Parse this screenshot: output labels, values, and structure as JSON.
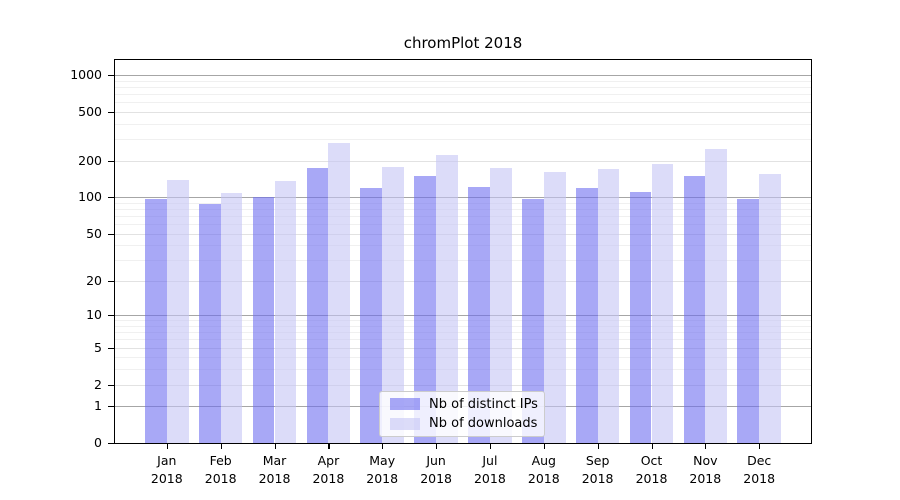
{
  "title": "chromPlot 2018",
  "legend": {
    "items": [
      {
        "label": "Nb of distinct IPs",
        "color": "rgba(105,105,240,0.58)"
      },
      {
        "label": "Nb of downloads",
        "color": "rgba(197,197,245,0.6)"
      }
    ]
  },
  "chart_data": {
    "type": "bar",
    "title": "chromPlot 2018",
    "categories": [
      "Jan 2018",
      "Feb 2018",
      "Mar 2018",
      "Apr 2018",
      "May 2018",
      "Jun 2018",
      "Jul 2018",
      "Aug 2018",
      "Sep 2018",
      "Oct 2018",
      "Nov 2018",
      "Dec 2018"
    ],
    "months": [
      "Jan",
      "Feb",
      "Mar",
      "Apr",
      "May",
      "Jun",
      "Jul",
      "Aug",
      "Sep",
      "Oct",
      "Nov",
      "Dec"
    ],
    "year": "2018",
    "series": [
      {
        "name": "Nb of distinct IPs",
        "color": "rgba(105,105,240,0.58)",
        "values": [
          97,
          88,
          100,
          175,
          118,
          150,
          122,
          97,
          119,
          111,
          150,
          96
        ]
      },
      {
        "name": "Nb of downloads",
        "color": "rgba(197,197,245,0.6)",
        "values": [
          138,
          109,
          135,
          280,
          178,
          220,
          173,
          160,
          172,
          188,
          248,
          155
        ]
      }
    ],
    "y_scale": "log10(1+x)",
    "y_ticks": [
      0,
      1,
      2,
      5,
      10,
      20,
      50,
      100,
      200,
      500,
      1000
    ],
    "ylim": [
      0,
      1325
    ],
    "grid": "horizontal",
    "legend_position": "lower center",
    "colors": {
      "axis": "#000000",
      "grid_decade": "#a6a6a6",
      "grid_labeled": "#e2e2e2",
      "grid_minor": "#f0f0f0",
      "background": "#ffffff"
    }
  }
}
